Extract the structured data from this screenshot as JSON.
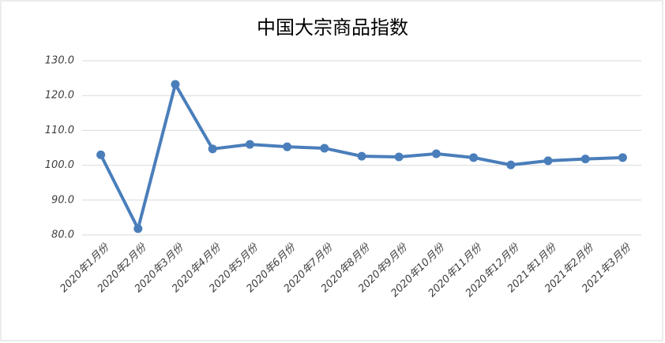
{
  "chart_data": {
    "type": "line",
    "title": "中国大宗商品指数",
    "categories": [
      "2020年1月份",
      "2020年2月份",
      "2020年3月份",
      "2020年4月份",
      "2020年5月份",
      "2020年6月份",
      "2020年7月份",
      "2020年8月份",
      "2020年9月份",
      "2020年10月份",
      "2020年11月份",
      "2020年12月份",
      "2021年1月份",
      "2021年2月份",
      "2021年3月份"
    ],
    "values": [
      103.0,
      81.8,
      123.2,
      104.7,
      106.0,
      105.3,
      104.9,
      102.6,
      102.4,
      103.3,
      102.2,
      100.1,
      101.3,
      101.8,
      102.2
    ],
    "color": "#4a7ebb",
    "ylim": [
      80,
      130
    ],
    "yticks": [
      {
        "value": 80,
        "label": "80.0"
      },
      {
        "value": 90,
        "label": "90.0"
      },
      {
        "value": 100,
        "label": "100.0"
      },
      {
        "value": 110,
        "label": "110.0"
      },
      {
        "value": 120,
        "label": "120.0"
      },
      {
        "value": 130,
        "label": "130.0"
      }
    ],
    "grid": true
  }
}
